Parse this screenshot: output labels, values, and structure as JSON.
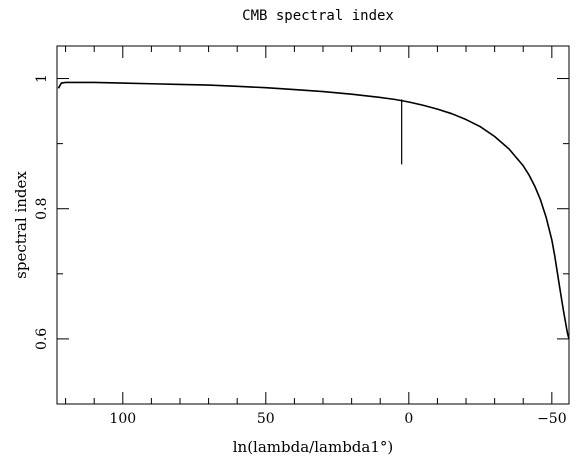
{
  "chart_data": {
    "type": "line",
    "title": "CMB spectral index",
    "xlabel": "ln(lambda/lambda1°)",
    "ylabel": "spectral index",
    "xlim": [
      123,
      -56
    ],
    "ylim": [
      0.5,
      1.05
    ],
    "x_reversed": true,
    "grid": false,
    "xticks": [
      {
        "value": 100,
        "label": "100"
      },
      {
        "value": 50,
        "label": "50"
      },
      {
        "value": 0,
        "label": "0"
      },
      {
        "value": -50,
        "label": "−50"
      }
    ],
    "yticks": [
      {
        "value": 1.0,
        "label": "1"
      },
      {
        "value": 0.8,
        "label": "0.8"
      },
      {
        "value": 0.6,
        "label": "0.6"
      }
    ],
    "series": [
      {
        "color": "#000000",
        "x": [
          122.5,
          121.5,
          120,
          110,
          100,
          90,
          80,
          70,
          60,
          50,
          40,
          30,
          20,
          10,
          5,
          0,
          -5,
          -10,
          -15,
          -20,
          -25,
          -30,
          -35,
          -40,
          -42,
          -44,
          -46,
          -48,
          -50,
          -51,
          -52,
          -53,
          -54,
          -55,
          -55.5,
          -56
        ],
        "y": [
          0.985,
          0.993,
          0.994,
          0.994,
          0.993,
          0.992,
          0.991,
          0.99,
          0.988,
          0.986,
          0.983,
          0.98,
          0.976,
          0.971,
          0.968,
          0.964,
          0.959,
          0.953,
          0.946,
          0.937,
          0.926,
          0.911,
          0.892,
          0.866,
          0.852,
          0.835,
          0.814,
          0.787,
          0.752,
          0.728,
          0.7,
          0.672,
          0.645,
          0.62,
          0.608,
          0.6
        ]
      }
    ],
    "annotations": [
      {
        "type": "vline",
        "x": 2.5,
        "y_from": 0.868,
        "y_to": 0.968
      }
    ]
  }
}
